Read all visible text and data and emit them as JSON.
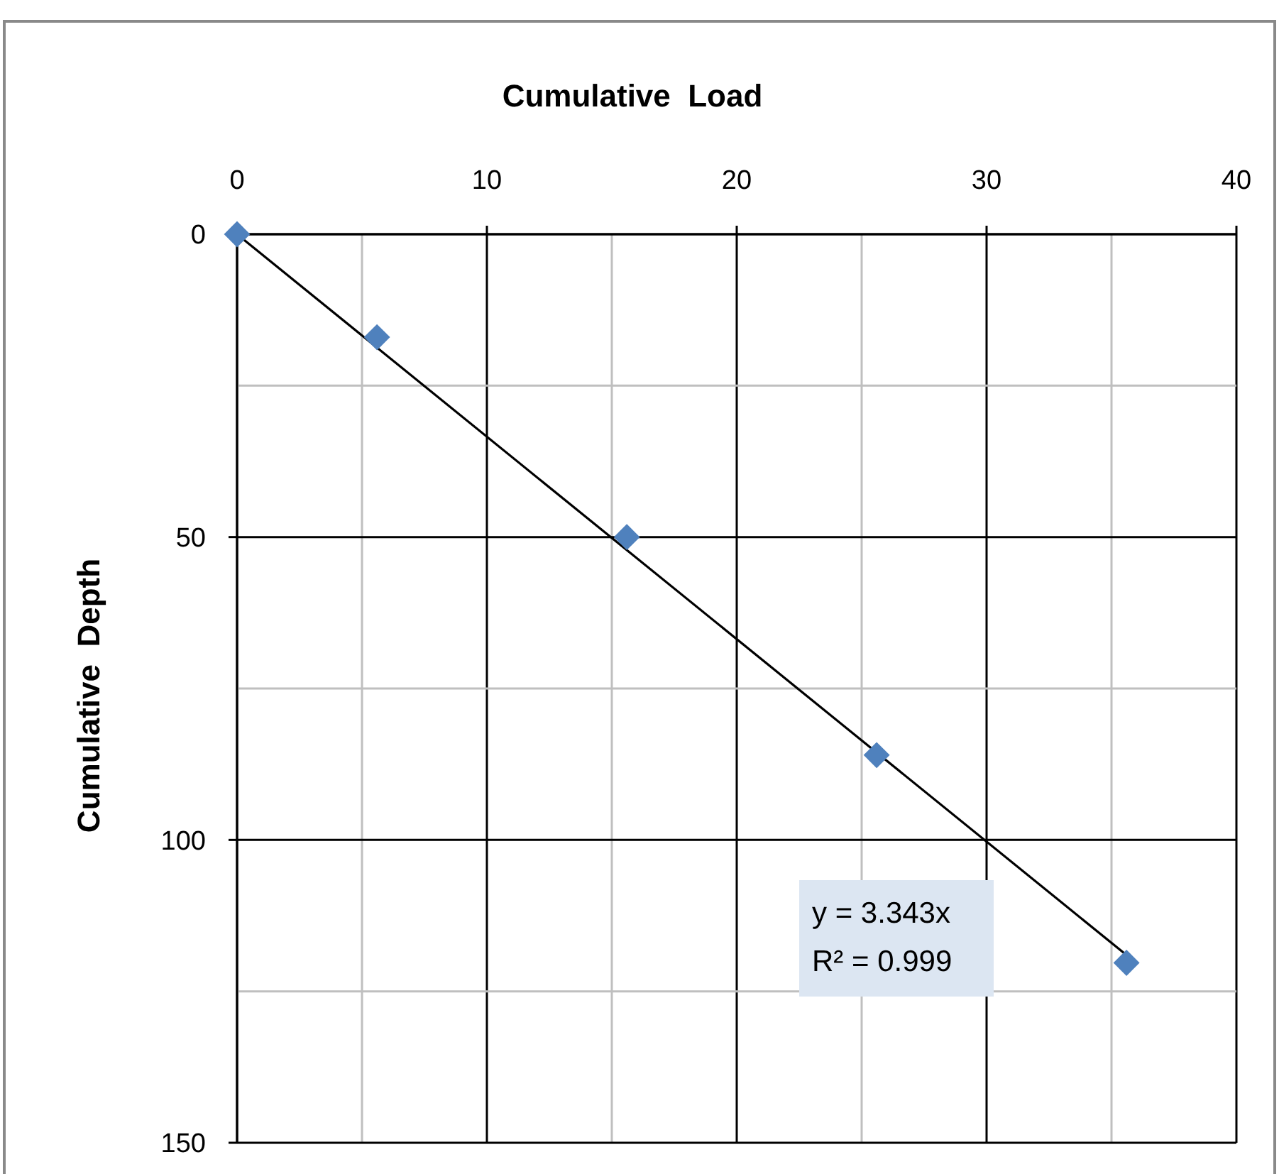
{
  "chart_data": {
    "type": "scatter",
    "xlabel": "Cumulative  Load",
    "ylabel": "Cumulative  Depth",
    "xlim": [
      0,
      40
    ],
    "xticks": [
      0,
      {
        "value": 5,
        "label": null
      },
      10,
      {
        "value": 15,
        "label": null
      },
      20,
      {
        "value": 25,
        "label": null
      },
      30,
      {
        "value": 35,
        "label": null
      },
      40
    ],
    "ylim": [
      150,
      0
    ],
    "yticks": [
      0,
      {
        "value": 25,
        "label": null
      },
      50,
      {
        "value": 75,
        "label": null
      },
      100,
      {
        "value": 125,
        "label": null
      },
      150
    ],
    "grid": true,
    "marker": "diamond",
    "series": [
      {
        "color": "#4f81bd",
        "x": [
          0,
          5.6,
          15.6,
          25.6,
          35.6
        ],
        "values": [
          0,
          17,
          50,
          86,
          120.3
        ]
      },
      {
        "type": "line",
        "color": "#000000",
        "x": [
          0,
          35.6
        ],
        "values": [
          0,
          119
        ],
        "marker": "none"
      }
    ],
    "annotations": [
      "y = 3.343x",
      "R² = 0.999"
    ]
  }
}
